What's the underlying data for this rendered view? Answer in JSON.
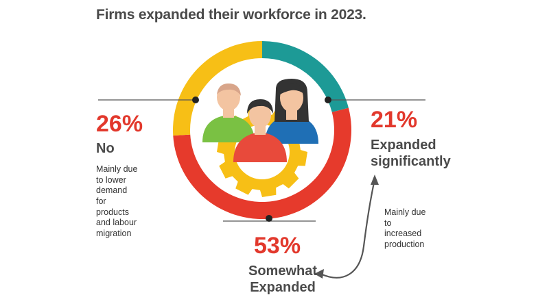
{
  "title": "Firms expanded their workforce in 2023.",
  "chart_data": {
    "type": "pie",
    "style": "donut",
    "categories": [
      "Expanded significantly",
      "Somewhat Expanded",
      "No"
    ],
    "values": [
      21,
      53,
      26
    ],
    "value_labels": [
      "21%",
      "53%",
      "26%"
    ],
    "colors": [
      "#1d9a96",
      "#e63a2c",
      "#f7bf16"
    ],
    "annotations": {
      "no": "Mainly due to lower demand for products and labour migration",
      "expanded_significantly": "Mainly due to increased production"
    }
  },
  "labels": {
    "no": {
      "pct": "26%",
      "name": "No",
      "note": [
        "Mainly due",
        "to lower",
        "demand",
        "for",
        "products",
        "and labour",
        "migration"
      ]
    },
    "sig": {
      "pct": "21%",
      "name": [
        "Expanded",
        "significantly"
      ],
      "note": [
        "Mainly due",
        "to",
        "increased",
        "production"
      ]
    },
    "some": {
      "pct": "53%",
      "name": [
        "Somewhat",
        "Expanded"
      ]
    }
  },
  "colors": {
    "title": "#4a4a4a",
    "percent": "#e2382c",
    "person_green": "#7ac143",
    "person_blue": "#1f6fb5",
    "person_red": "#e84a3b",
    "skin": "#f3c4a1",
    "gear": "#f7bf16"
  }
}
